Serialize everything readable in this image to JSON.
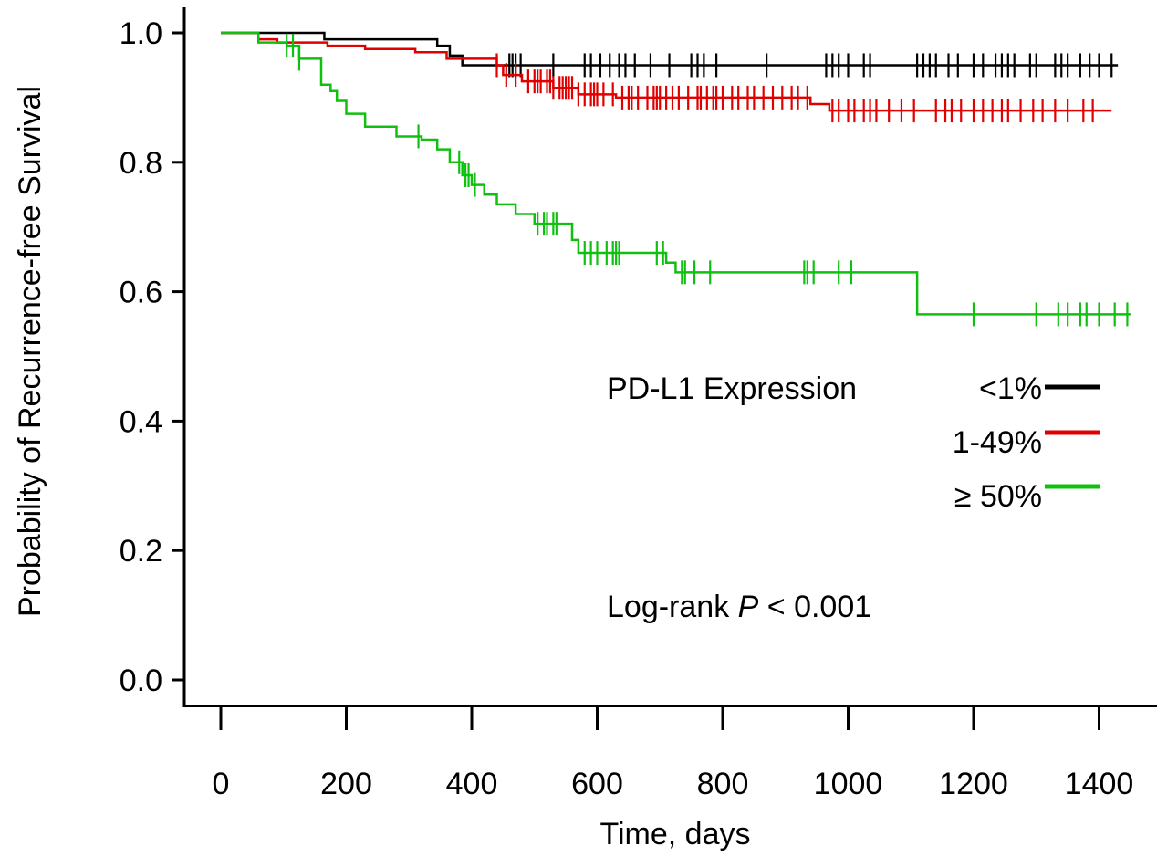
{
  "chart_data": {
    "type": "line",
    "subtype": "kaplan-meier step curves with censor ticks",
    "xlabel": "Time, days",
    "ylabel": "Probability of Recurrence-free Survival",
    "xlim": [
      0,
      1450
    ],
    "ylim": [
      0,
      1.0
    ],
    "xticks": [
      "0",
      "200",
      "400",
      "600",
      "800",
      "1000",
      "1200",
      "1400"
    ],
    "xtick_values": [
      0,
      200,
      400,
      600,
      800,
      1000,
      1200,
      1400
    ],
    "yticks": [
      "0.0",
      "0.2",
      "0.4",
      "0.6",
      "0.8",
      "1.0"
    ],
    "ytick_values": [
      0.0,
      0.2,
      0.4,
      0.6,
      0.8,
      1.0
    ],
    "grid": false,
    "legend": {
      "title": "PD-L1 Expression",
      "placement": "right-middle"
    },
    "annotation": {
      "prefix": "Log-rank ",
      "p_symbol": "P",
      "suffix": " < 0.001",
      "placement": "lower-right"
    },
    "series": [
      {
        "name": "<1%",
        "color": "#000000",
        "steps": [
          [
            0,
            1.0
          ],
          [
            165,
            0.99
          ],
          [
            345,
            0.98
          ],
          [
            365,
            0.965
          ],
          [
            385,
            0.95
          ],
          [
            1430,
            0.95
          ]
        ],
        "censors": [
          460,
          465,
          470,
          478,
          530,
          580,
          590,
          605,
          620,
          635,
          645,
          660,
          685,
          715,
          750,
          760,
          770,
          790,
          870,
          965,
          975,
          985,
          1000,
          1025,
          1035,
          1110,
          1120,
          1130,
          1140,
          1160,
          1175,
          1200,
          1215,
          1235,
          1245,
          1255,
          1265,
          1290,
          1300,
          1330,
          1340,
          1350,
          1370,
          1385,
          1400,
          1420
        ]
      },
      {
        "name": "1-49%",
        "color": "#e00000",
        "steps": [
          [
            0,
            1.0
          ],
          [
            60,
            0.99
          ],
          [
            90,
            0.985
          ],
          [
            170,
            0.98
          ],
          [
            230,
            0.975
          ],
          [
            310,
            0.97
          ],
          [
            360,
            0.96
          ],
          [
            440,
            0.95
          ],
          [
            450,
            0.935
          ],
          [
            480,
            0.925
          ],
          [
            530,
            0.915
          ],
          [
            570,
            0.905
          ],
          [
            630,
            0.9
          ],
          [
            940,
            0.89
          ],
          [
            970,
            0.88
          ],
          [
            1420,
            0.88
          ]
        ],
        "censors": [
          440,
          455,
          470,
          490,
          500,
          505,
          510,
          520,
          525,
          530,
          540,
          545,
          550,
          555,
          560,
          570,
          580,
          590,
          595,
          600,
          610,
          625,
          640,
          650,
          655,
          665,
          680,
          690,
          695,
          700,
          710,
          720,
          730,
          745,
          760,
          765,
          775,
          785,
          790,
          800,
          815,
          825,
          840,
          850,
          865,
          880,
          895,
          910,
          920,
          935,
          975,
          985,
          1000,
          1010,
          1025,
          1035,
          1045,
          1065,
          1085,
          1105,
          1140,
          1155,
          1165,
          1180,
          1200,
          1215,
          1230,
          1245,
          1255,
          1275,
          1295,
          1310,
          1330,
          1350,
          1375,
          1390
        ]
      },
      {
        "name": "≥ 50%",
        "color": "#10c010",
        "steps": [
          [
            0,
            1.0
          ],
          [
            60,
            0.985
          ],
          [
            105,
            0.98
          ],
          [
            125,
            0.96
          ],
          [
            160,
            0.92
          ],
          [
            175,
            0.91
          ],
          [
            185,
            0.895
          ],
          [
            200,
            0.875
          ],
          [
            230,
            0.855
          ],
          [
            280,
            0.84
          ],
          [
            320,
            0.835
          ],
          [
            345,
            0.82
          ],
          [
            365,
            0.8
          ],
          [
            385,
            0.78
          ],
          [
            400,
            0.765
          ],
          [
            420,
            0.75
          ],
          [
            440,
            0.735
          ],
          [
            470,
            0.72
          ],
          [
            500,
            0.705
          ],
          [
            560,
            0.68
          ],
          [
            570,
            0.66
          ],
          [
            710,
            0.645
          ],
          [
            725,
            0.63
          ],
          [
            1110,
            0.565
          ],
          [
            1450,
            0.565
          ]
        ],
        "censors": [
          105,
          115,
          125,
          315,
          380,
          390,
          395,
          405,
          505,
          515,
          520,
          530,
          535,
          580,
          590,
          600,
          615,
          625,
          630,
          635,
          695,
          705,
          735,
          740,
          755,
          780,
          930,
          935,
          945,
          985,
          1005,
          1200,
          1300,
          1335,
          1350,
          1370,
          1380,
          1400,
          1425,
          1445
        ]
      }
    ]
  }
}
